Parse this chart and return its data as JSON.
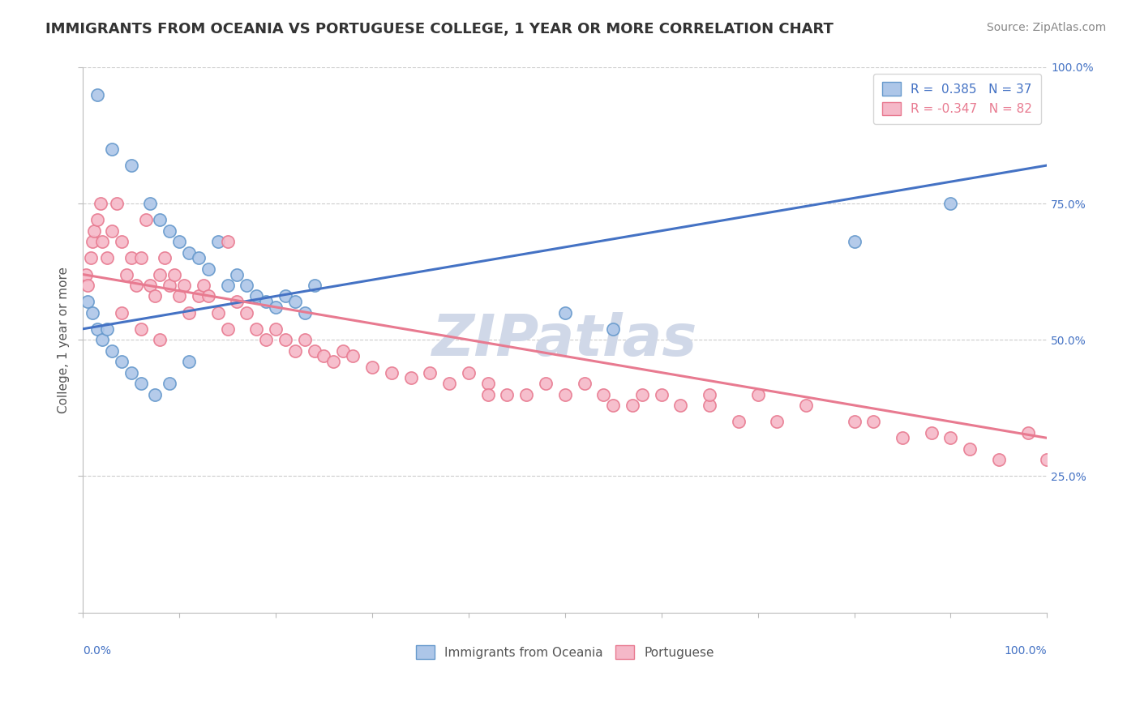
{
  "title": "IMMIGRANTS FROM OCEANIA VS PORTUGUESE COLLEGE, 1 YEAR OR MORE CORRELATION CHART",
  "source": "Source: ZipAtlas.com",
  "ylabel": "College, 1 year or more",
  "watermark": "ZIPatlas",
  "legend": {
    "blue_label": "R =  0.385   N = 37",
    "pink_label": "R = -0.347   N = 82"
  },
  "blue_scatter": {
    "x": [
      1.5,
      3.0,
      5.0,
      7.0,
      8.0,
      9.0,
      10.0,
      11.0,
      12.0,
      13.0,
      14.0,
      15.0,
      16.0,
      17.0,
      18.0,
      19.0,
      20.0,
      21.0,
      22.0,
      23.0,
      24.0,
      0.5,
      1.0,
      1.5,
      2.0,
      2.5,
      3.0,
      4.0,
      5.0,
      6.0,
      7.5,
      9.0,
      11.0,
      50.0,
      55.0,
      80.0,
      90.0
    ],
    "y": [
      95,
      85,
      82,
      75,
      72,
      70,
      68,
      66,
      65,
      63,
      68,
      60,
      62,
      60,
      58,
      57,
      56,
      58,
      57,
      55,
      60,
      57,
      55,
      52,
      50,
      52,
      48,
      46,
      44,
      42,
      40,
      42,
      46,
      55,
      52,
      68,
      75
    ],
    "color": "#adc6e8",
    "edge_color": "#6699cc",
    "R": 0.385,
    "N": 37
  },
  "pink_scatter": {
    "x": [
      0.3,
      0.5,
      0.8,
      1.0,
      1.2,
      1.5,
      1.8,
      2.0,
      2.5,
      3.0,
      3.5,
      4.0,
      4.5,
      5.0,
      5.5,
      6.0,
      6.5,
      7.0,
      7.5,
      8.0,
      8.5,
      9.0,
      9.5,
      10.0,
      10.5,
      11.0,
      12.0,
      12.5,
      13.0,
      14.0,
      15.0,
      16.0,
      17.0,
      18.0,
      19.0,
      20.0,
      21.0,
      22.0,
      23.0,
      24.0,
      25.0,
      26.0,
      27.0,
      28.0,
      30.0,
      32.0,
      34.0,
      36.0,
      38.0,
      40.0,
      42.0,
      44.0,
      46.0,
      48.0,
      50.0,
      52.0,
      54.0,
      55.0,
      57.0,
      58.0,
      60.0,
      62.0,
      65.0,
      68.0,
      70.0,
      72.0,
      75.0,
      80.0,
      82.0,
      85.0,
      88.0,
      90.0,
      92.0,
      95.0,
      98.0,
      100.0,
      4.0,
      6.0,
      8.0,
      15.0,
      42.0,
      65.0
    ],
    "y": [
      62,
      60,
      65,
      68,
      70,
      72,
      75,
      68,
      65,
      70,
      75,
      68,
      62,
      65,
      60,
      65,
      72,
      60,
      58,
      62,
      65,
      60,
      62,
      58,
      60,
      55,
      58,
      60,
      58,
      55,
      52,
      57,
      55,
      52,
      50,
      52,
      50,
      48,
      50,
      48,
      47,
      46,
      48,
      47,
      45,
      44,
      43,
      44,
      42,
      44,
      42,
      40,
      40,
      42,
      40,
      42,
      40,
      38,
      38,
      40,
      40,
      38,
      38,
      35,
      40,
      35,
      38,
      35,
      35,
      32,
      33,
      32,
      30,
      28,
      33,
      28,
      55,
      52,
      50,
      68,
      40,
      40
    ],
    "color": "#f5b8c8",
    "edge_color": "#e87a90",
    "R": -0.347,
    "N": 82
  },
  "blue_trend": {
    "x_start": 0,
    "x_end": 100,
    "y_start": 52,
    "y_end": 82,
    "color": "#4472c4"
  },
  "pink_trend": {
    "x_start": 0,
    "x_end": 100,
    "y_start": 62,
    "y_end": 32,
    "color": "#e87a90"
  },
  "xlim": [
    0,
    100
  ],
  "ylim": [
    0,
    100
  ],
  "right_yticks": [
    0,
    25,
    50,
    75,
    100
  ],
  "right_yticklabels": [
    "",
    "25.0%",
    "50.0%",
    "75.0%",
    "100.0%"
  ],
  "background_color": "#ffffff",
  "grid_color": "#cccccc",
  "title_fontsize": 13,
  "source_fontsize": 10,
  "watermark_color": "#d0d8e8",
  "watermark_fontsize": 52
}
